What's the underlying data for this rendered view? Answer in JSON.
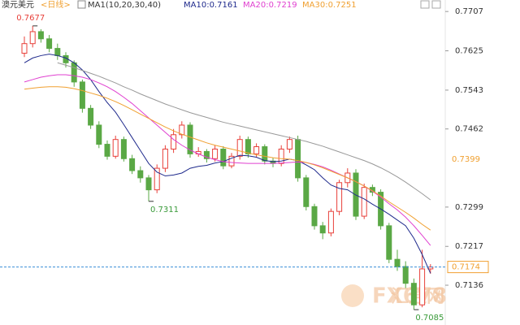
{
  "chart_data": {
    "type": "candlestick",
    "title": "澳元美元",
    "period": "<日线>",
    "indicator": "MA1(10,20,30,40)",
    "up_color": "#e8403a",
    "down_color": "#5aa845",
    "open": [
      0.762,
      0.764,
      0.7665,
      0.765,
      0.763,
      0.7615,
      0.76,
      0.756,
      0.7505,
      0.747,
      0.743,
      0.7405,
      0.744,
      0.74,
      0.7375,
      0.736,
      0.7335,
      0.738,
      0.742,
      0.745,
      0.747,
      0.741,
      0.7415,
      0.74,
      0.742,
      0.7385,
      0.7405,
      0.744,
      0.741,
      0.7425,
      0.7395,
      0.739,
      0.742,
      0.744,
      0.736,
      0.73,
      0.726,
      0.7245,
      0.729,
      0.735,
      0.737,
      0.728,
      0.734,
      0.733,
      0.726,
      0.719,
      0.7175,
      0.714,
      0.7095,
      0.717
    ],
    "high": [
      0.7655,
      0.7677,
      0.767,
      0.7658,
      0.764,
      0.7622,
      0.7605,
      0.7565,
      0.7512,
      0.7478,
      0.7438,
      0.7448,
      0.7446,
      0.7408,
      0.7384,
      0.7366,
      0.7388,
      0.7428,
      0.7462,
      0.7478,
      0.7476,
      0.7424,
      0.742,
      0.7428,
      0.7426,
      0.7412,
      0.7448,
      0.7446,
      0.7432,
      0.743,
      0.7402,
      0.7428,
      0.7446,
      0.7448,
      0.7366,
      0.7306,
      0.7268,
      0.7296,
      0.7356,
      0.738,
      0.7378,
      0.7348,
      0.7346,
      0.7336,
      0.7266,
      0.721,
      0.7186,
      0.715,
      0.721,
      0.718
    ],
    "low": [
      0.7612,
      0.7632,
      0.7642,
      0.7622,
      0.7606,
      0.759,
      0.755,
      0.7496,
      0.7462,
      0.7422,
      0.7398,
      0.74,
      0.7394,
      0.7368,
      0.735,
      0.7311,
      0.7328,
      0.7372,
      0.7412,
      0.7442,
      0.7402,
      0.7404,
      0.7392,
      0.7394,
      0.7378,
      0.738,
      0.7398,
      0.7402,
      0.7404,
      0.7388,
      0.7382,
      0.7384,
      0.7412,
      0.7352,
      0.7292,
      0.7252,
      0.7232,
      0.7238,
      0.7282,
      0.734,
      0.7272,
      0.7274,
      0.7322,
      0.7252,
      0.7182,
      0.7166,
      0.713,
      0.7085,
      0.709,
      0.716
    ],
    "close": [
      0.764,
      0.7665,
      0.765,
      0.763,
      0.7615,
      0.76,
      0.756,
      0.7505,
      0.747,
      0.743,
      0.7405,
      0.744,
      0.74,
      0.7375,
      0.736,
      0.7335,
      0.738,
      0.742,
      0.745,
      0.747,
      0.741,
      0.7415,
      0.74,
      0.742,
      0.7385,
      0.7405,
      0.744,
      0.741,
      0.7425,
      0.7395,
      0.739,
      0.742,
      0.744,
      0.736,
      0.73,
      0.726,
      0.7245,
      0.729,
      0.735,
      0.737,
      0.728,
      0.734,
      0.733,
      0.726,
      0.719,
      0.7175,
      0.714,
      0.7095,
      0.717,
      0.7174
    ],
    "series": [
      {
        "name": "MA10:0.7161",
        "color": "#1f2a8c",
        "values": [
          0.76,
          0.761,
          0.7615,
          0.7618,
          0.7615,
          0.761,
          0.76,
          0.7585,
          0.7565,
          0.754,
          0.7517,
          0.7497,
          0.7471,
          0.7444,
          0.7417,
          0.739,
          0.7372,
          0.7364,
          0.7366,
          0.737,
          0.738,
          0.7384,
          0.7386,
          0.7391,
          0.7394,
          0.7401,
          0.7407,
          0.7406,
          0.7403,
          0.7396,
          0.7394,
          0.7395,
          0.7399,
          0.7396,
          0.7387,
          0.7377,
          0.736,
          0.7345,
          0.7338,
          0.7335,
          0.7324,
          0.7316,
          0.7305,
          0.7295,
          0.7284,
          0.7272,
          0.726,
          0.7234,
          0.72,
          0.7161
        ]
      },
      {
        "name": "MA20:0.7219",
        "color": "#e040d0",
        "values": [
          0.756,
          0.7565,
          0.757,
          0.7573,
          0.7575,
          0.7575,
          0.7573,
          0.757,
          0.7565,
          0.7558,
          0.755,
          0.754,
          0.7528,
          0.7515,
          0.75,
          0.7485,
          0.747,
          0.7455,
          0.744,
          0.7428,
          0.7418,
          0.741,
          0.7403,
          0.7398,
          0.7394,
          0.7392,
          0.7391,
          0.739,
          0.739,
          0.739,
          0.739,
          0.7391,
          0.7392,
          0.7393,
          0.7392,
          0.7388,
          0.7383,
          0.7376,
          0.7368,
          0.736,
          0.7352,
          0.7343,
          0.7332,
          0.732,
          0.7306,
          0.7293,
          0.7278,
          0.726,
          0.724,
          0.7219
        ]
      },
      {
        "name": "MA30:0.7251",
        "color": "#f0a030",
        "values": [
          0.7545,
          0.7547,
          0.7549,
          0.755,
          0.755,
          0.7549,
          0.7546,
          0.7542,
          0.7537,
          0.7532,
          0.7526,
          0.7519,
          0.7511,
          0.7502,
          0.7493,
          0.7484,
          0.7475,
          0.7466,
          0.7458,
          0.7451,
          0.7445,
          0.7439,
          0.7433,
          0.7428,
          0.7424,
          0.742,
          0.7416,
          0.7412,
          0.7408,
          0.7405,
          0.7402,
          0.74,
          0.7399,
          0.7396,
          0.7392,
          0.7387,
          0.7381,
          0.7374,
          0.7367,
          0.736,
          0.7352,
          0.7343,
          0.7333,
          0.7322,
          0.731,
          0.7299,
          0.7288,
          0.7276,
          0.7263,
          0.7251
        ]
      },
      {
        "color": "#999999",
        "values": [
          null,
          null,
          null,
          null,
          0.76,
          0.7595,
          0.759,
          0.7584,
          0.7578,
          0.7572,
          0.7565,
          0.7558,
          0.755,
          0.7543,
          0.7535,
          0.7528,
          0.7521,
          0.7514,
          0.7508,
          0.7502,
          0.7496,
          0.7491,
          0.7486,
          0.7481,
          0.7476,
          0.7472,
          0.7468,
          0.7464,
          0.746,
          0.7456,
          0.7452,
          0.7448,
          0.7444,
          0.744,
          0.7436,
          0.7431,
          0.7426,
          0.742,
          0.7414,
          0.7408,
          0.7402,
          0.7396,
          0.7389,
          0.7381,
          0.7372,
          0.7362,
          0.7351,
          0.7339,
          0.7327,
          0.7314
        ]
      }
    ],
    "ylim": [
      0.7053,
      0.7731
    ],
    "yticks": [
      0.7707,
      0.7625,
      0.7543,
      0.7462,
      0.7299,
      0.7217,
      0.7136
    ],
    "highlight_level": 0.7399,
    "annotations": [
      {
        "index": 1,
        "field": "high",
        "color": "#e8403a"
      },
      {
        "index": 15,
        "field": "low",
        "color": "#3a9a3a"
      },
      {
        "index": 47,
        "field": "low",
        "color": "#3a9a3a"
      }
    ],
    "watermark": [
      "FX678",
      "汇通网"
    ]
  }
}
